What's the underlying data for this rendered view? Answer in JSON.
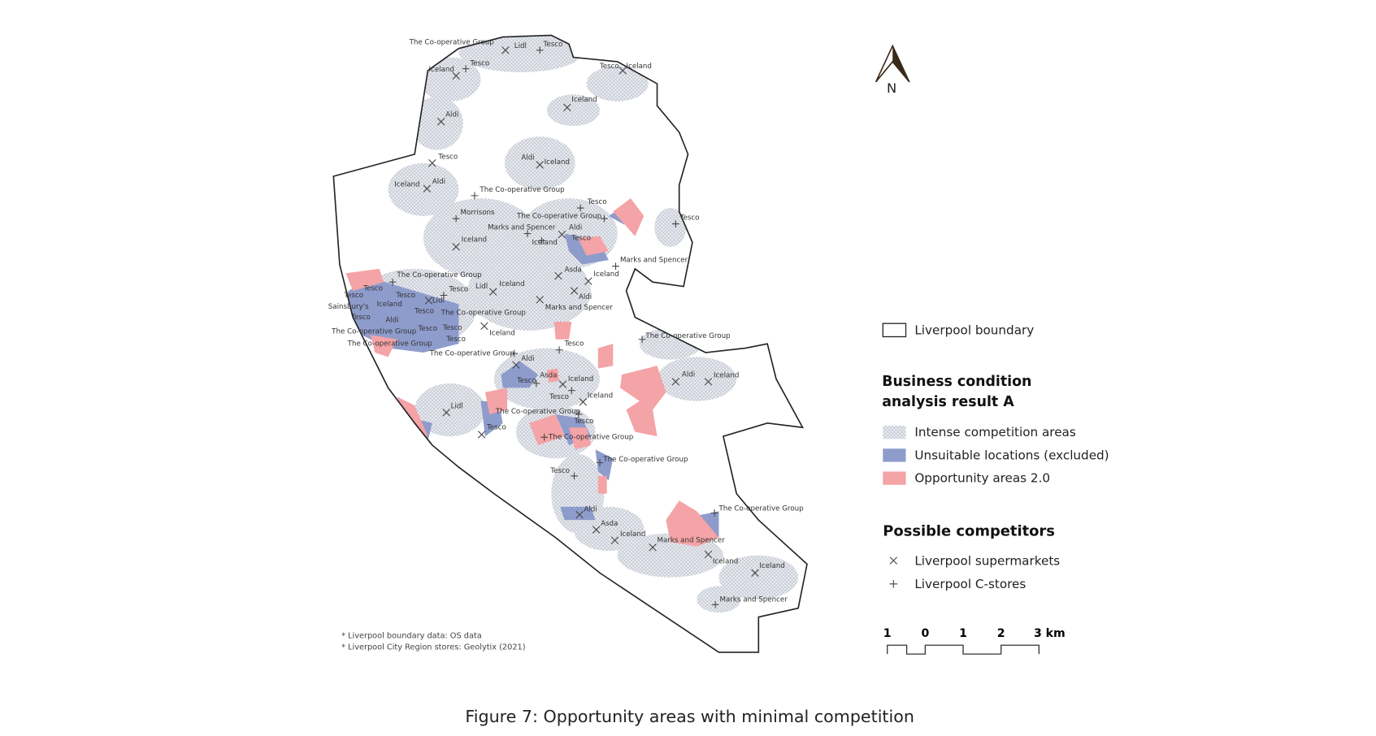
{
  "map": {
    "stores": [
      "The Co-operative Group",
      "Lidl",
      "Tesco",
      "Iceland",
      "Tesco",
      "Tesco",
      "Iceland",
      "Iceland",
      "Aldi",
      "Tesco",
      "Aldi",
      "Iceland",
      "Iceland",
      "Aldi",
      "The Co-operative Group",
      "Tesco",
      "Morrisons",
      "The Co-operative Group",
      "Tesco",
      "Marks and Spencer",
      "Aldi",
      "Iceland",
      "Iceland",
      "Tesco",
      "Marks and Spencer",
      "Asda",
      "Iceland",
      "The Co-operative Group",
      "Tesco",
      "Tesco",
      "Lidl",
      "Iceland",
      "Tesco",
      "Tesco",
      "Lidl",
      "Aldi",
      "Sainsbury's",
      "Iceland",
      "Marks and Spencer",
      "Tesco",
      "The Co-operative Group",
      "Tesco",
      "Aldi",
      "Tesco",
      "Tesco",
      "Iceland",
      "The Co-operative Group",
      "The Co-operative Group",
      "Tesco",
      "The Co-operative Group",
      "Tesco",
      "The Co-operative Group",
      "Aldi",
      "Aldi",
      "Iceland",
      "Asda",
      "Tesco",
      "Iceland",
      "Tesco",
      "Iceland",
      "Lidl",
      "The Co-operative Group",
      "Tesco",
      "Tesco",
      "The Co-operative Group",
      "The Co-operative Group",
      "Tesco",
      "Aldi",
      "The Co-operative Group",
      "Asda",
      "Iceland",
      "Marks and Spencer",
      "Iceland",
      "Iceland",
      "Marks and Spencer"
    ],
    "north": "N",
    "legend": {
      "boundary": "Liverpool boundary",
      "analysis_title": "Business condition analysis result A",
      "analysis_items": [
        "Intense competition areas",
        "Unsuitable locations (excluded)",
        "Opportunity areas 2.0"
      ],
      "competitors_title": "Possible competitors",
      "competitor_items": [
        "Liverpool supermarkets",
        "Liverpool C-stores"
      ]
    },
    "scale_labels": [
      "1",
      "0",
      "1",
      "2",
      "3 km"
    ],
    "notes": [
      "* Liverpool boundary data: OS data",
      "* Liverpool City Region stores: Geolytix (2021)"
    ],
    "caption": "Figure 7:   Opportunity areas with minimal competition"
  }
}
